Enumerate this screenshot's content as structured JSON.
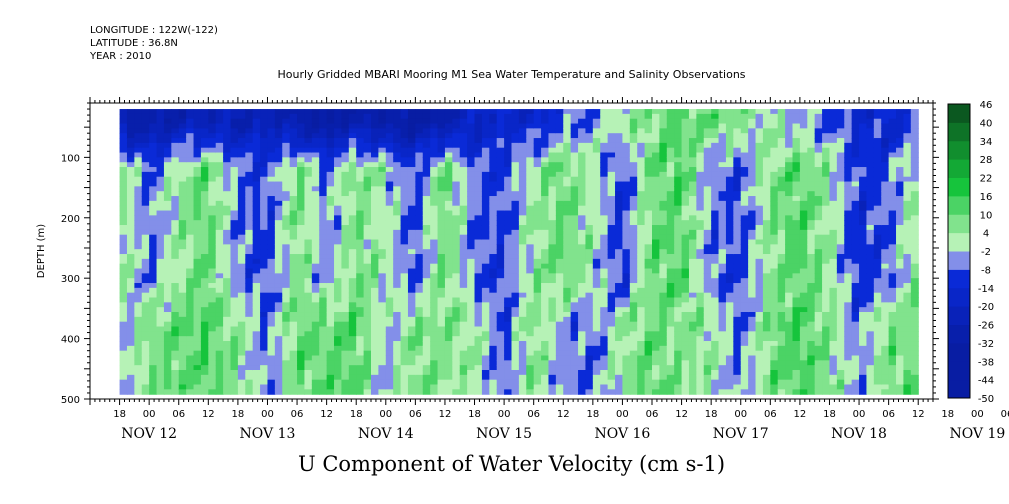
{
  "header": {
    "longitude": "LONGITUDE : 122W(-122)",
    "latitude": "LATITUDE : 36.8N",
    "year": "YEAR : 2010"
  },
  "chart_data": {
    "type": "heatmap",
    "title": "Hourly Gridded MBARI Mooring M1 Sea Water Temperature and Salinity Observations",
    "main_label": "U Component of Water Velocity (cm s-1)",
    "ylabel": "DEPTH (m)",
    "yticks": [
      100,
      200,
      300,
      400,
      500
    ],
    "ylim": [
      500,
      10
    ],
    "xlim_hours": [
      "NOV 12 12:00",
      "NOV 19 15:00"
    ],
    "hour_ticks": [
      "18",
      "00",
      "06",
      "12",
      "18",
      "00",
      "06",
      "12",
      "18",
      "00",
      "06",
      "12",
      "18",
      "00",
      "06",
      "12",
      "18",
      "00",
      "06",
      "12",
      "18",
      "00",
      "06",
      "12",
      "18",
      "00",
      "06",
      "12",
      "18",
      "00",
      "06",
      "12"
    ],
    "dates": [
      "NOV 12",
      "NOV 13",
      "NOV 14",
      "NOV 15",
      "NOV 16",
      "NOV 17",
      "NOV 18",
      "NOV 19"
    ],
    "colorbar": {
      "levels": [
        -50,
        -44,
        -38,
        -32,
        -26,
        -20,
        -14,
        -8,
        -2,
        4,
        10,
        16,
        22,
        28,
        34,
        40,
        46
      ],
      "labels": [
        "46",
        "40",
        "34",
        "28",
        "22",
        "16",
        "10",
        "4",
        "-2",
        "-8",
        "-14",
        "-20",
        "-26",
        "-32",
        "-38",
        "-44",
        "-50"
      ]
    },
    "colors": {
      "neg_strong": "#0a2ad8",
      "neg_light": "#b4b8f0",
      "pos_light": "#b6f2b6",
      "pos_strong": "#16c43c"
    },
    "depth_coverage": [
      20,
      490
    ],
    "u_profile": [
      {
        "time": "NOV 12 18",
        "surface": -28,
        "mid": 6,
        "deep": -6
      },
      {
        "time": "NOV 13 00",
        "surface": -30,
        "mid": -8,
        "deep": 8
      },
      {
        "time": "NOV 13 06",
        "surface": -26,
        "mid": 4,
        "deep": 10
      },
      {
        "time": "NOV 13 12",
        "surface": -24,
        "mid": 10,
        "deep": 12
      },
      {
        "time": "NOV 13 18",
        "surface": -26,
        "mid": -6,
        "deep": 6
      },
      {
        "time": "NOV 14 00",
        "surface": -22,
        "mid": -10,
        "deep": -8
      },
      {
        "time": "NOV 14 06",
        "surface": -30,
        "mid": 8,
        "deep": 10
      },
      {
        "time": "NOV 14 12",
        "surface": -34,
        "mid": -6,
        "deep": 10
      },
      {
        "time": "NOV 14 18",
        "surface": -28,
        "mid": 8,
        "deep": 12
      },
      {
        "time": "NOV 15 00",
        "surface": -30,
        "mid": 2,
        "deep": -4
      },
      {
        "time": "NOV 15 06",
        "surface": -34,
        "mid": -10,
        "deep": 8
      },
      {
        "time": "NOV 15 12",
        "surface": -28,
        "mid": 10,
        "deep": 6
      },
      {
        "time": "NOV 15 18",
        "surface": -20,
        "mid": -8,
        "deep": 4
      },
      {
        "time": "NOV 16 00",
        "surface": -14,
        "mid": -10,
        "deep": -10
      },
      {
        "time": "NOV 16 06",
        "surface": -18,
        "mid": 4,
        "deep": 8
      },
      {
        "time": "NOV 16 12",
        "surface": -8,
        "mid": 10,
        "deep": -6
      },
      {
        "time": "NOV 16 18",
        "surface": -6,
        "mid": 2,
        "deep": -8
      },
      {
        "time": "NOV 17 00",
        "surface": 4,
        "mid": -12,
        "deep": 4
      },
      {
        "time": "NOV 17 06",
        "surface": 6,
        "mid": 10,
        "deep": 10
      },
      {
        "time": "NOV 17 12",
        "surface": 12,
        "mid": 12,
        "deep": 6
      },
      {
        "time": "NOV 17 18",
        "surface": 10,
        "mid": -6,
        "deep": 4
      },
      {
        "time": "NOV 18 00",
        "surface": 6,
        "mid": -10,
        "deep": -8
      },
      {
        "time": "NOV 18 06",
        "surface": 2,
        "mid": 6,
        "deep": 8
      },
      {
        "time": "NOV 18 12",
        "surface": -4,
        "mid": 12,
        "deep": 14
      },
      {
        "time": "NOV 18 18",
        "surface": -8,
        "mid": 4,
        "deep": 6
      },
      {
        "time": "NOV 19 00",
        "surface": -14,
        "mid": -12,
        "deep": -6
      },
      {
        "time": "NOV 19 06",
        "surface": -16,
        "mid": -8,
        "deep": 8
      },
      {
        "time": "NOV 19 12",
        "surface": -10,
        "mid": 6,
        "deep": 10
      }
    ]
  }
}
